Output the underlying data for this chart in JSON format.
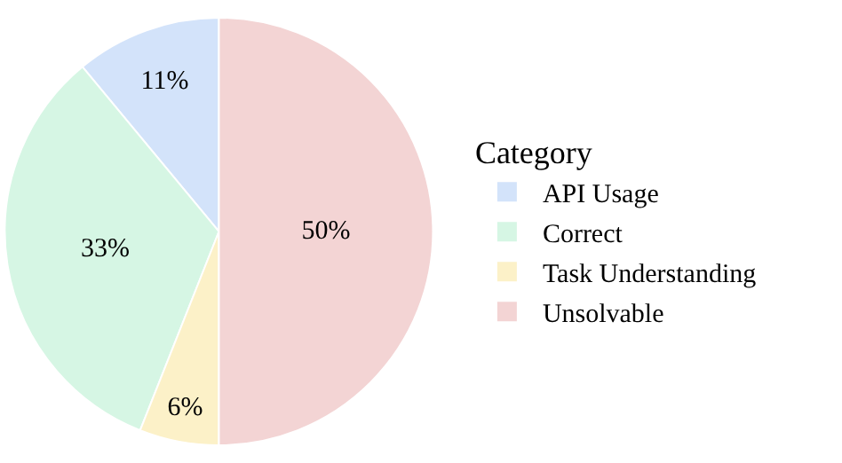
{
  "chart_data": {
    "type": "pie",
    "legend_title": "Category",
    "legend": "right",
    "categories": [
      "API Usage",
      "Correct",
      "Task Understanding",
      "Unsolvable"
    ],
    "values": [
      11,
      33,
      6,
      50
    ],
    "value_labels": [
      "11%",
      "33%",
      "6%",
      "50%"
    ],
    "colors": [
      "#d3e3fa",
      "#d6f6e4",
      "#fcf1c8",
      "#f3d4d4"
    ]
  }
}
